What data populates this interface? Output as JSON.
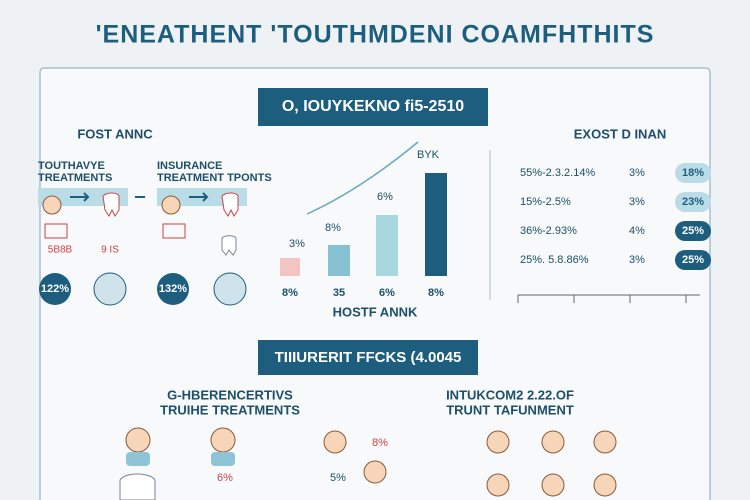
{
  "header": {
    "title": "'ENEATHENT 'TOUTHMDENI COAMFHTHITS"
  },
  "banner": "O, IOUYKEKNO fi5-2510",
  "left": {
    "title": "FOST ANNC",
    "col1": [
      "TOUTHAVYE",
      "TREATMENTS"
    ],
    "col2": [
      "INSURANCE",
      "TREATMENT TPONTS"
    ],
    "notes": [
      "5B8B",
      "9 IS"
    ],
    "badges": [
      "122%",
      "132%"
    ]
  },
  "middle": {
    "bar_labels": [
      "3%",
      "8%",
      "6%",
      "BYK"
    ],
    "axis_labels": [
      "8%",
      "35",
      "6%",
      "8%"
    ],
    "caption": "HOSTF ANNK"
  },
  "right": {
    "title": "EXOST D INAN",
    "rows": [
      [
        "55%-2.3.2.14%",
        "3%",
        "18%"
      ],
      [
        "15%-2.5%",
        "3%",
        "23%"
      ],
      [
        "36%-2.93%",
        "4%",
        "25%"
      ],
      [
        "25%. 5.8.86%",
        "3%",
        "25%"
      ]
    ]
  },
  "banner2": "TIIIURERIT FFCKS (4.0045",
  "bottom_left": [
    "G-HBERENCERTIVS",
    "TRUIHE TREATMENTS"
  ],
  "bottom_right": [
    "INTUKCOM2 2.22.OF",
    "TRUNT TAFUNMENT"
  ],
  "bottom_notes": [
    "8%",
    "5%",
    "6%"
  ]
}
